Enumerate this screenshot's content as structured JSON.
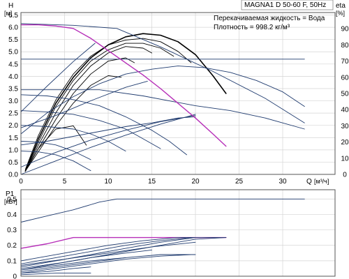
{
  "header": {
    "title": "MAGNA1 D 50-60 F, 50Hz",
    "liquid": "Перекачиваемая жидкость = Вода",
    "density": "Плотность = 998.2 кг/м³"
  },
  "chart_data": [
    {
      "type": "line",
      "name": "head",
      "ylabel": "H",
      "yunit": "[м]",
      "xlabel": "Q",
      "xunit": "[м³/ч]",
      "y2label": "eta",
      "y2unit": "[%]",
      "xlim": [
        0,
        36
      ],
      "ylim": [
        0,
        6.6
      ],
      "y2lim": [
        0,
        100
      ],
      "xticks": [
        0,
        5,
        10,
        15,
        20,
        25,
        30
      ],
      "yticks": [
        0.0,
        0.5,
        1.0,
        1.5,
        2.0,
        2.5,
        3.0,
        3.5,
        4.0,
        4.5,
        5.0,
        5.5,
        6.0,
        6.5
      ],
      "y2ticks": [
        0,
        10,
        20,
        30,
        40,
        50,
        60,
        70,
        80,
        90
      ],
      "grid": true,
      "series": [
        {
          "color": "#1e3a6e",
          "x": [
            0,
            6,
            11,
            16,
            22,
            28,
            32.5
          ],
          "y": [
            6.15,
            6.08,
            5.95,
            5.2,
            4.2,
            3.1,
            2.1
          ]
        },
        {
          "color": "#1e3a6e",
          "x": [
            0,
            32.5
          ],
          "y": [
            4.7,
            4.7
          ]
        },
        {
          "color": "#1e3a6e",
          "x": [
            0,
            9,
            14,
            20,
            24,
            28,
            32.5
          ],
          "y": [
            3.45,
            3.45,
            3.2,
            2.8,
            2.6,
            2.3,
            1.85
          ]
        },
        {
          "color": "#1e3a6e",
          "x": [
            0,
            3,
            6,
            9,
            12,
            15,
            17,
            19
          ],
          "y": [
            3.25,
            3.2,
            3.05,
            2.8,
            2.35,
            1.8,
            1.35,
            0.8
          ]
        },
        {
          "color": "#1e3a6e",
          "x": [
            0,
            3,
            6,
            9,
            12,
            14,
            16
          ],
          "y": [
            2.6,
            2.55,
            2.45,
            2.2,
            1.85,
            1.45,
            1.05
          ]
        },
        {
          "color": "#1e3a6e",
          "x": [
            0,
            3,
            6,
            8,
            10,
            12
          ],
          "y": [
            2.0,
            1.95,
            1.85,
            1.65,
            1.35,
            0.95
          ]
        },
        {
          "color": "#1e3a6e",
          "x": [
            0,
            2,
            4,
            6,
            8
          ],
          "y": [
            1.35,
            1.32,
            1.2,
            0.95,
            0.6
          ]
        },
        {
          "color": "#1e3a6e",
          "x": [
            0,
            2,
            4,
            6,
            8
          ],
          "y": [
            0.95,
            0.92,
            0.8,
            0.55,
            0.15
          ]
        },
        {
          "color": "#1e3a6e",
          "x": [
            0,
            3,
            6,
            9,
            12,
            15,
            18,
            20
          ],
          "y": [
            1.2,
            1.35,
            1.55,
            1.75,
            1.95,
            2.1,
            2.3,
            2.35
          ]
        },
        {
          "color": "#1e3a6e",
          "x": [
            0,
            4,
            8,
            12,
            16,
            20
          ],
          "y": [
            0.3,
            0.9,
            1.4,
            1.8,
            2.15,
            2.4
          ]
        },
        {
          "color": "#1e3a6e",
          "x": [
            0,
            3,
            6,
            8.5
          ],
          "y": [
            2.55,
            3.6,
            4.6,
            5.35
          ]
        },
        {
          "color": "#1e3a6e",
          "x": [
            0,
            4,
            8,
            12,
            14.5
          ],
          "y": [
            1.9,
            2.4,
            3.0,
            3.55,
            3.8
          ]
        },
        {
          "color": "#1e3a6e",
          "x": [
            0,
            4,
            8,
            12,
            16,
            20
          ],
          "y": [
            0.0,
            0.55,
            1.1,
            1.6,
            2.05,
            2.45
          ]
        },
        {
          "color": "#b62eb8",
          "x": [
            0,
            2,
            4,
            6,
            8,
            10,
            12,
            14,
            16,
            18,
            20,
            22,
            23.5
          ],
          "y": [
            6.1,
            6.1,
            6.05,
            5.95,
            5.55,
            5.05,
            4.55,
            4.05,
            3.5,
            2.9,
            2.3,
            1.65,
            1.15
          ]
        }
      ],
      "efficiency_series": [
        {
          "color": "#000000",
          "width": 1.6,
          "x": [
            0.5,
            2,
            4,
            6,
            8,
            10,
            12,
            14,
            16,
            18,
            20,
            22,
            23.5
          ],
          "y": [
            2,
            22,
            44,
            60,
            72,
            80,
            85,
            87,
            86,
            82,
            74,
            61,
            50
          ]
        },
        {
          "color": "#000000",
          "width": 0.9,
          "x": [
            0.5,
            2,
            4,
            6,
            8,
            10,
            12,
            14,
            16,
            18,
            19.5
          ],
          "y": [
            3,
            24,
            46,
            62,
            73,
            80,
            83,
            84,
            82,
            76,
            69
          ]
        },
        {
          "color": "#000000",
          "width": 0.9,
          "x": [
            0.5,
            2,
            4,
            6,
            8,
            10,
            12,
            14,
            16,
            17.5
          ],
          "y": [
            2,
            20,
            42,
            58,
            70,
            77,
            81,
            81,
            78,
            73
          ]
        },
        {
          "color": "#000000",
          "width": 0.9,
          "x": [
            0.5,
            2,
            4,
            6,
            8,
            10,
            12,
            14,
            15
          ],
          "y": [
            2,
            18,
            38,
            55,
            67,
            75,
            79,
            78,
            75
          ]
        },
        {
          "color": "#000000",
          "width": 0.9,
          "x": [
            0.5,
            2,
            4,
            6,
            8,
            10,
            12,
            13
          ],
          "y": [
            2,
            16,
            34,
            50,
            62,
            70,
            72,
            69
          ]
        },
        {
          "color": "#000000",
          "width": 0.9,
          "x": [
            0.5,
            2,
            4,
            6,
            8,
            10,
            11.5
          ],
          "y": [
            2,
            14,
            30,
            44,
            55,
            61,
            60
          ]
        },
        {
          "color": "#000000",
          "width": 0.9,
          "x": [
            0.5,
            2,
            4,
            6,
            7.5
          ],
          "y": [
            2,
            16,
            28,
            30,
            18
          ]
        },
        {
          "color": "#1e3a6e",
          "width": 0.9,
          "x": [
            0,
            3,
            6,
            9,
            12,
            15,
            18,
            21,
            24,
            27,
            30,
            32.5
          ],
          "y": [
            25,
            38,
            48,
            56,
            62,
            65,
            67,
            66,
            63,
            58,
            51,
            42
          ]
        }
      ]
    },
    {
      "type": "line",
      "name": "power",
      "ylabel": "P1",
      "yunit": "[кВт]",
      "xlim": [
        0,
        36
      ],
      "ylim": [
        0,
        0.56
      ],
      "yticks": [
        0,
        0.1,
        0.2,
        0.3,
        0.4,
        0.5
      ],
      "grid": true,
      "series": [
        {
          "color": "#1e3a6e",
          "x": [
            0,
            3,
            6,
            9,
            11,
            32.5
          ],
          "y": [
            0.35,
            0.39,
            0.43,
            0.48,
            0.5,
            0.5
          ]
        },
        {
          "color": "#b62eb8",
          "x": [
            0,
            3,
            6,
            10,
            14,
            18,
            23.5
          ],
          "y": [
            0.18,
            0.21,
            0.25,
            0.25,
            0.25,
            0.25,
            0.25
          ]
        },
        {
          "color": "#1e3a6e",
          "x": [
            0,
            5,
            10,
            14,
            18,
            23.5
          ],
          "y": [
            0.1,
            0.15,
            0.2,
            0.23,
            0.25,
            0.25
          ]
        },
        {
          "color": "#1e3a6e",
          "x": [
            0,
            5,
            10,
            15,
            20,
            23.5
          ],
          "y": [
            0.05,
            0.09,
            0.14,
            0.19,
            0.24,
            0.25
          ]
        },
        {
          "color": "#1e3a6e",
          "x": [
            0,
            5,
            10,
            15,
            20
          ],
          "y": [
            0.07,
            0.11,
            0.15,
            0.19,
            0.22
          ]
        },
        {
          "color": "#1e3a6e",
          "x": [
            0,
            4,
            8,
            12,
            15
          ],
          "y": [
            0.04,
            0.08,
            0.12,
            0.15,
            0.17
          ]
        },
        {
          "color": "#1e3a6e",
          "x": [
            0,
            4,
            8,
            12
          ],
          "y": [
            0.03,
            0.06,
            0.09,
            0.12
          ]
        },
        {
          "color": "#1e3a6e",
          "x": [
            0,
            4,
            8,
            12,
            16,
            19.5
          ],
          "y": [
            0.08,
            0.12,
            0.16,
            0.2,
            0.23,
            0.25
          ]
        },
        {
          "color": "#1e3a6e",
          "x": [
            0,
            4,
            8,
            12,
            16,
            19.5
          ],
          "y": [
            0.02,
            0.05,
            0.08,
            0.11,
            0.13,
            0.14
          ]
        },
        {
          "color": "#1e3a6e",
          "x": [
            0,
            3,
            6,
            8
          ],
          "y": [
            0.02,
            0.03,
            0.05,
            0.06
          ]
        },
        {
          "color": "#1e3a6e",
          "x": [
            0,
            4,
            8,
            12,
            16,
            20
          ],
          "y": [
            0.06,
            0.1,
            0.14,
            0.18,
            0.22,
            0.25
          ]
        },
        {
          "color": "#1e3a6e",
          "x": [
            0,
            4,
            8,
            12,
            16,
            20
          ],
          "y": [
            0.04,
            0.07,
            0.1,
            0.12,
            0.14,
            0.14
          ]
        },
        {
          "color": "#1e3a6e",
          "x": [
            0,
            4,
            8
          ],
          "y": [
            0.01,
            0.02,
            0.02
          ]
        }
      ]
    }
  ]
}
